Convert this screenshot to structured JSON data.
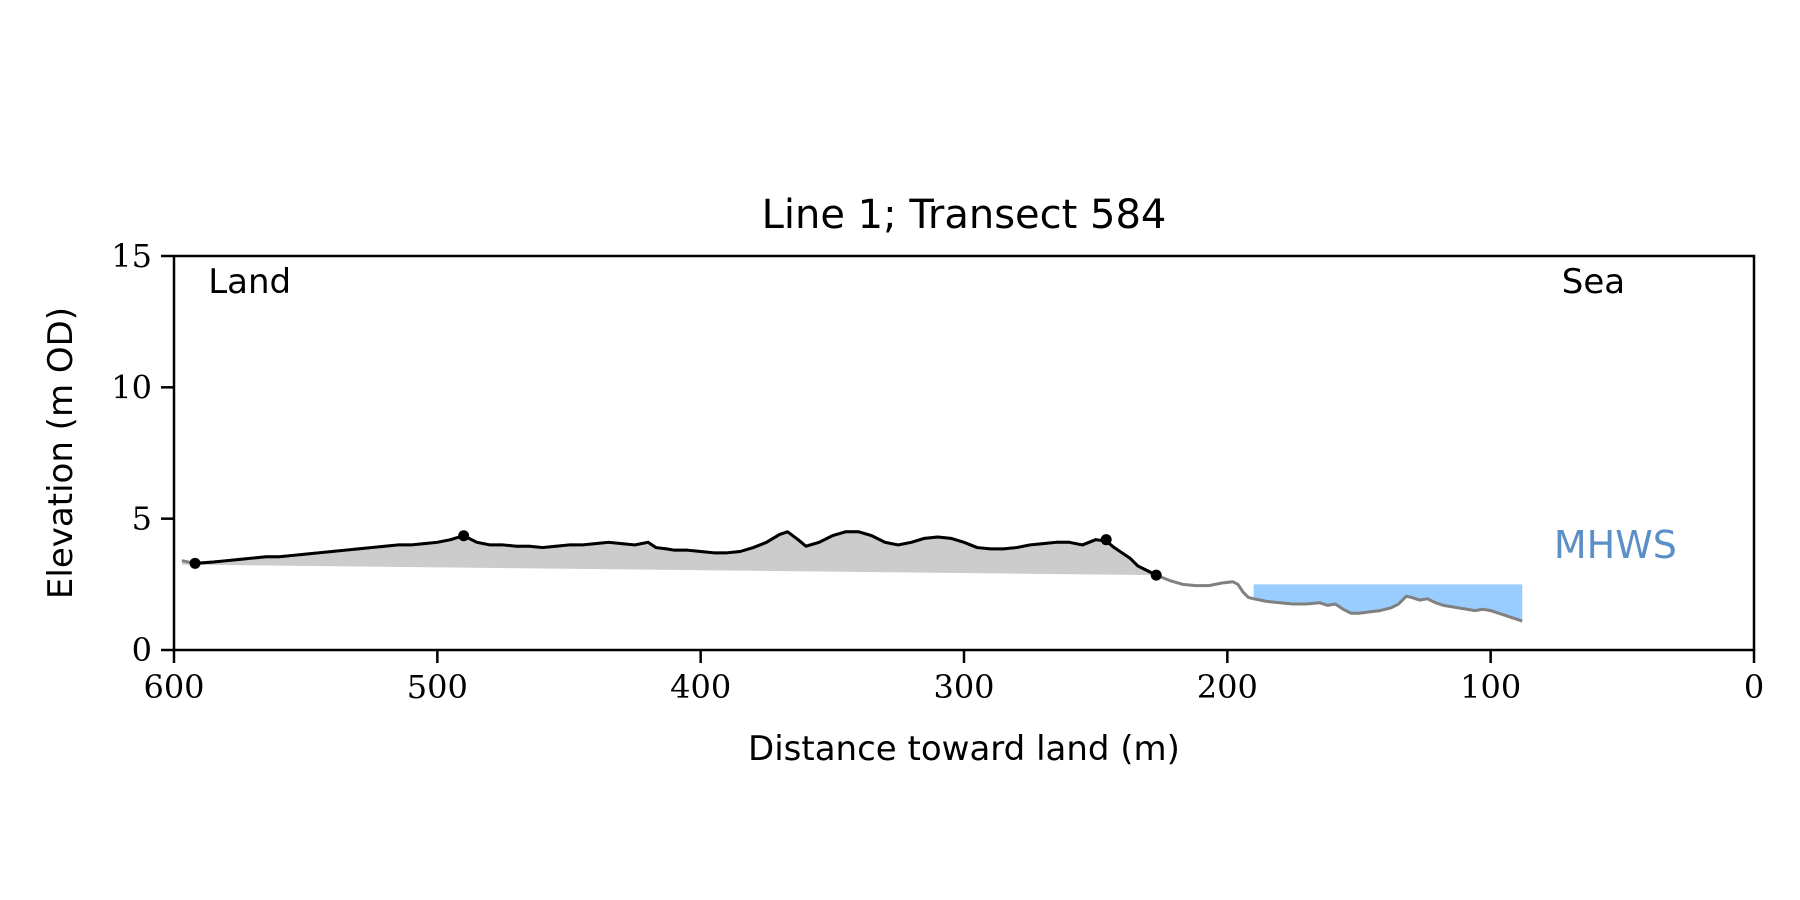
{
  "chart_data": {
    "type": "area",
    "title": "Line 1; Transect 584",
    "xlabel": "Distance toward land (m)",
    "ylabel": "Elevation (m OD)",
    "xlim": [
      600,
      0
    ],
    "ylim": [
      0,
      15
    ],
    "x_reversed": true,
    "xticks": [
      600,
      500,
      400,
      300,
      200,
      100,
      0
    ],
    "yticks": [
      0,
      5,
      10,
      15
    ],
    "grid": false,
    "annotations": [
      {
        "text": "Land",
        "x": 587,
        "y": 13.6,
        "color": "#000000"
      },
      {
        "text": "Sea",
        "x": 73,
        "y": 13.6,
        "color": "#000000"
      },
      {
        "text": "MHWS",
        "x": 76,
        "y": 3.5,
        "color": "#5b8fc7"
      }
    ],
    "series": [
      {
        "role": "full-profile",
        "color": "#808080",
        "x": [
          597,
          592,
          585,
          580,
          575,
          570,
          565,
          560,
          555,
          550,
          545,
          540,
          535,
          530,
          525,
          520,
          515,
          510,
          505,
          500,
          495,
          490,
          485,
          480,
          475,
          470,
          465,
          460,
          455,
          450,
          445,
          440,
          435,
          430,
          425,
          420,
          417,
          413,
          410,
          405,
          400,
          395,
          390,
          385,
          380,
          375,
          370,
          367,
          363,
          360,
          355,
          350,
          345,
          340,
          335,
          330,
          325,
          320,
          315,
          310,
          305,
          300,
          295,
          290,
          285,
          280,
          275,
          270,
          265,
          260,
          255,
          250,
          246,
          243,
          240,
          237,
          234,
          231,
          227,
          222,
          217,
          212,
          207,
          202,
          198,
          196,
          194,
          192,
          190,
          185,
          180,
          175,
          170,
          165,
          162,
          159,
          156,
          153,
          150,
          146,
          142,
          138,
          135,
          132,
          130,
          127,
          124,
          121,
          118,
          115,
          112,
          109,
          106,
          103,
          100,
          97,
          94,
          91,
          88
        ],
        "y": [
          3.4,
          3.3,
          3.35,
          3.4,
          3.45,
          3.5,
          3.55,
          3.55,
          3.6,
          3.65,
          3.7,
          3.75,
          3.8,
          3.85,
          3.9,
          3.95,
          4.0,
          4.0,
          4.05,
          4.1,
          4.2,
          4.35,
          4.1,
          4.0,
          4.0,
          3.95,
          3.95,
          3.9,
          3.95,
          4.0,
          4.0,
          4.05,
          4.1,
          4.05,
          4.0,
          4.1,
          3.9,
          3.85,
          3.8,
          3.8,
          3.75,
          3.7,
          3.7,
          3.75,
          3.9,
          4.1,
          4.4,
          4.5,
          4.2,
          3.95,
          4.1,
          4.35,
          4.5,
          4.5,
          4.35,
          4.1,
          4.0,
          4.1,
          4.25,
          4.3,
          4.25,
          4.1,
          3.9,
          3.85,
          3.85,
          3.9,
          4.0,
          4.05,
          4.1,
          4.1,
          4.0,
          4.2,
          4.15,
          3.9,
          3.7,
          3.5,
          3.2,
          3.05,
          2.85,
          2.65,
          2.5,
          2.45,
          2.45,
          2.55,
          2.6,
          2.5,
          2.2,
          2.0,
          1.95,
          1.85,
          1.8,
          1.75,
          1.75,
          1.8,
          1.7,
          1.75,
          1.55,
          1.4,
          1.4,
          1.45,
          1.5,
          1.6,
          1.75,
          2.05,
          2.0,
          1.9,
          1.95,
          1.8,
          1.7,
          1.65,
          1.6,
          1.55,
          1.5,
          1.55,
          1.5,
          1.4,
          1.3,
          1.2,
          1.1
        ]
      },
      {
        "role": "land-profile",
        "color": "#000000",
        "x_range": [
          592,
          227
        ]
      }
    ],
    "markers": [
      {
        "x": 592,
        "y": 3.3
      },
      {
        "x": 490,
        "y": 4.35
      },
      {
        "x": 246,
        "y": 4.2
      },
      {
        "x": 227,
        "y": 2.85
      }
    ],
    "fill_baseline": {
      "x": [
        597,
        227
      ],
      "y": [
        3.25,
        2.85
      ],
      "color": "#cccccc"
    },
    "mhws": {
      "level": 2.5,
      "x_range": [
        190,
        88
      ],
      "color": "#99ccff"
    }
  }
}
